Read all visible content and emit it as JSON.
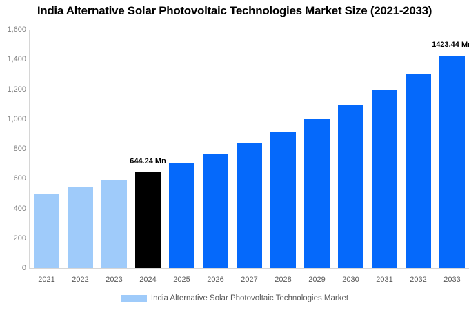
{
  "chart_data": {
    "type": "bar",
    "title": "India Alternative Solar Photovoltaic Technologies Market Size (2021-2033)",
    "categories": [
      "2021",
      "2022",
      "2023",
      "2024",
      "2025",
      "2026",
      "2027",
      "2028",
      "2029",
      "2030",
      "2031",
      "2032",
      "2033"
    ],
    "values": [
      494.6,
      540.2,
      589.9,
      644.24,
      703.6,
      768.4,
      839.1,
      916.4,
      1000.8,
      1093.0,
      1193.6,
      1303.5,
      1423.44
    ],
    "unit": "Mn",
    "xlabel": "",
    "ylabel": "",
    "ylim": [
      0,
      1600
    ],
    "yticks": [
      0,
      200,
      400,
      600,
      800,
      1000,
      1200,
      1400,
      1600
    ],
    "ytick_labels": [
      "0",
      "200",
      "400",
      "600",
      "800",
      "1,000",
      "1,200",
      "1,400",
      "1,600"
    ],
    "grid": false,
    "bar_colors": {
      "historical": "#9FCBFA",
      "base_year": "#000000",
      "forecast": "#0569FB"
    },
    "bar_color_map": [
      "historical",
      "historical",
      "historical",
      "base_year",
      "forecast",
      "forecast",
      "forecast",
      "forecast",
      "forecast",
      "forecast",
      "forecast",
      "forecast",
      "forecast"
    ],
    "annotations": [
      {
        "category": "2024",
        "text": "644.24 Mn"
      },
      {
        "category": "2033",
        "text": "1423.44 Mn"
      }
    ],
    "legend": {
      "label": "India Alternative Solar Photovoltaic Technologies Market",
      "swatch_color": "#9FCBFA",
      "position": "bottom"
    }
  },
  "colors": {
    "background": "#FFFFFF",
    "axis_line": "#D6D6D6",
    "ytick_text": "#7F7F7F",
    "xtick_text": "#595959",
    "legend_text": "#595959",
    "title_text": "#000000",
    "annotation_text": "#000000"
  }
}
